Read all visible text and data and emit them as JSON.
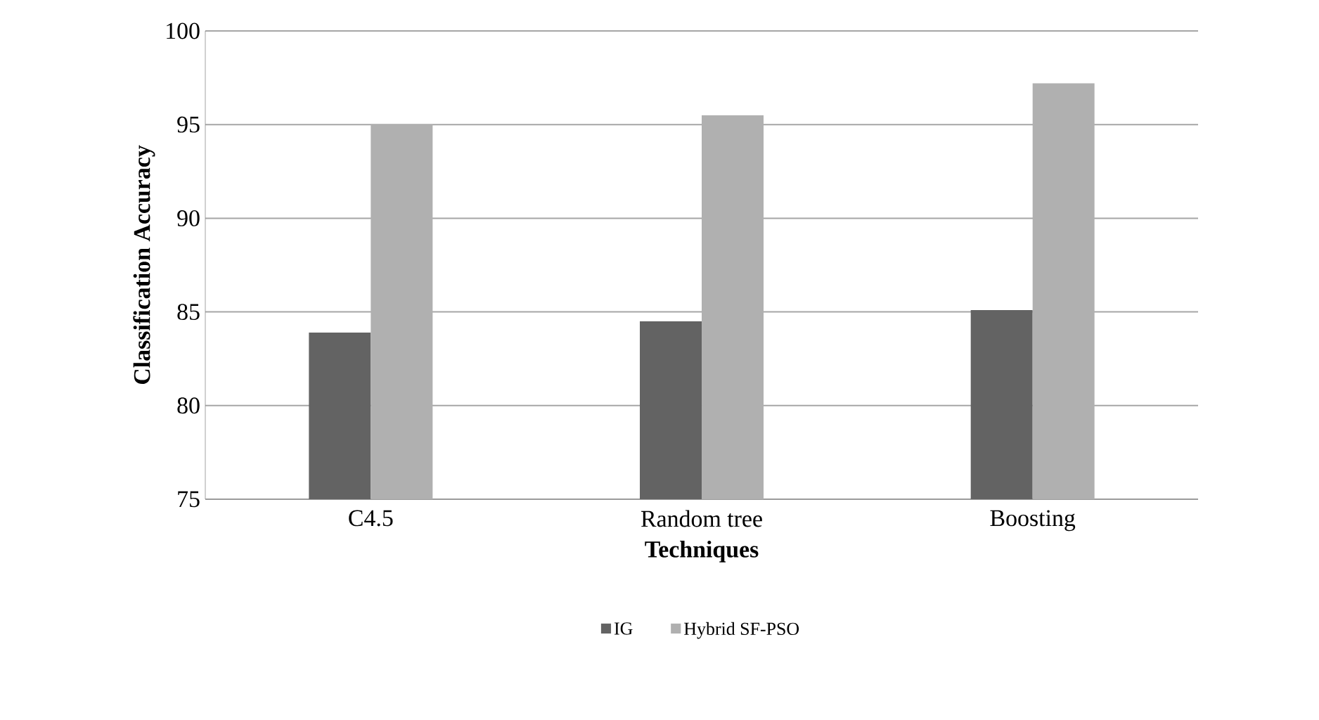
{
  "chart_data": {
    "type": "bar",
    "xlabel": "Techniques",
    "ylabel": "Classification Accuracy",
    "categories": [
      "C4.5",
      "Random tree",
      "Boosting"
    ],
    "series": [
      {
        "name": "IG",
        "color": "#636363",
        "values": [
          83.9,
          84.5,
          85.1
        ]
      },
      {
        "name": "Hybrid SF-PSO",
        "color": "#b0b0b0",
        "values": [
          95.0,
          95.5,
          97.2
        ]
      }
    ],
    "ylim": [
      75,
      100
    ],
    "yticks": [
      75,
      80,
      85,
      90,
      95,
      100
    ],
    "grid": "y",
    "legend": "bottom"
  }
}
